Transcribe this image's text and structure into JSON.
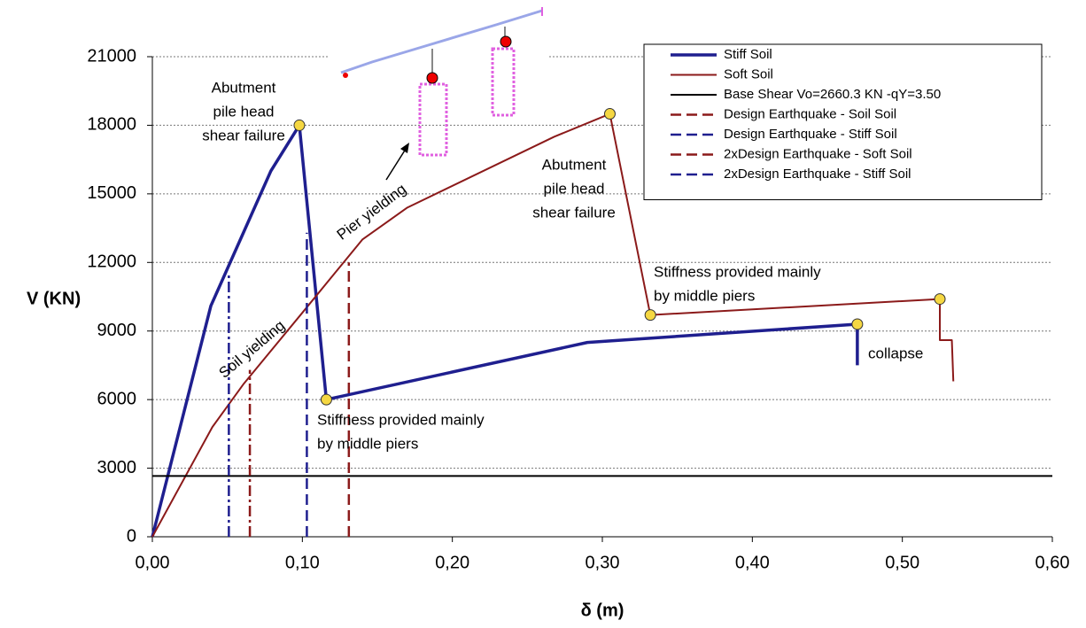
{
  "chart_data": {
    "type": "line",
    "x_label": "δ (m)",
    "y_label": "V (KN)",
    "xlim": [
      0,
      0.6
    ],
    "ylim": [
      0,
      21000
    ],
    "xticks": [
      {
        "value": 0,
        "label": "0,00"
      },
      {
        "value": 0.1,
        "label": "0,10"
      },
      {
        "value": 0.2,
        "label": "0,20"
      },
      {
        "value": 0.3,
        "label": "0,30"
      },
      {
        "value": 0.4,
        "label": "0,40"
      },
      {
        "value": 0.5,
        "label": "0,50"
      },
      {
        "value": 0.6,
        "label": "0,60"
      }
    ],
    "yticks": [
      0,
      3000,
      6000,
      9000,
      12000,
      15000,
      18000,
      21000
    ],
    "grid": true,
    "legend": "top-right",
    "series": [
      {
        "name": "Stiff Soil",
        "color": "#1f1f8f",
        "dash": "solid",
        "width": 3.5,
        "x": [
          0,
          0.039,
          0.079,
          0.098,
          0.116,
          0.29,
          0.47,
          0.47
        ],
        "values": [
          0,
          10100,
          16000,
          18000,
          6000,
          8500,
          9300,
          7500
        ]
      },
      {
        "name": "Soft Soil",
        "color": "#8b1a1a",
        "dash": "solid",
        "width": 2,
        "x": [
          0,
          0.04,
          0.061,
          0.1,
          0.14,
          0.17,
          0.268,
          0.305,
          0.332,
          0.525,
          0.525,
          0.533,
          0.534
        ],
        "values": [
          0,
          4800,
          6700,
          9800,
          13000,
          14400,
          17500,
          18500,
          9700,
          10400,
          8600,
          8600,
          6800
        ]
      },
      {
        "name": "Base Shear Vo=2660.3 KN -qY=3.50",
        "color": "#000000",
        "dash": "solid",
        "width": 2,
        "x": [
          0,
          0.6
        ],
        "values": [
          2660.3,
          2660.3
        ]
      },
      {
        "name": "Design Earthquake - Soil Soil",
        "color": "#8b1a1a",
        "dash": "dashdot",
        "width": 2.5,
        "x": [
          0.065,
          0.065
        ],
        "values": [
          0,
          7300
        ]
      },
      {
        "name": "Design Earthquake - Stiff Soil",
        "color": "#1f1f8f",
        "dash": "dashdot",
        "width": 2.5,
        "x": [
          0.051,
          0.051
        ],
        "values": [
          0,
          11500
        ]
      },
      {
        "name": "2xDesign Earthquake - Soft Soil",
        "color": "#8b1a1a",
        "dash": "dash",
        "width": 2.5,
        "x": [
          0.131,
          0.131
        ],
        "values": [
          0,
          12000
        ]
      },
      {
        "name": "2xDesign Earthquake - Stiff Soil",
        "color": "#1f1f8f",
        "dash": "dash",
        "width": 2.5,
        "x": [
          0.103,
          0.103
        ],
        "values": [
          0,
          13300
        ]
      }
    ],
    "markers": {
      "color": "#f5d742",
      "x": [
        0.098,
        0.116,
        0.305,
        0.332,
        0.47,
        0.525
      ],
      "y": [
        18000,
        6000,
        18500,
        9700,
        9300,
        10400
      ]
    },
    "annotations": [
      [
        "Abutment",
        "pile head",
        "shear failure"
      ],
      [
        "Pier yielding"
      ],
      [
        "Soil yielding"
      ],
      [
        "Stiffness provided mainly",
        "by middle piers"
      ],
      [
        "Abutment",
        "pile head",
        "shear failure"
      ],
      [
        "Stiffness provided mainly",
        "by middle piers"
      ],
      [
        "collapse"
      ]
    ]
  }
}
